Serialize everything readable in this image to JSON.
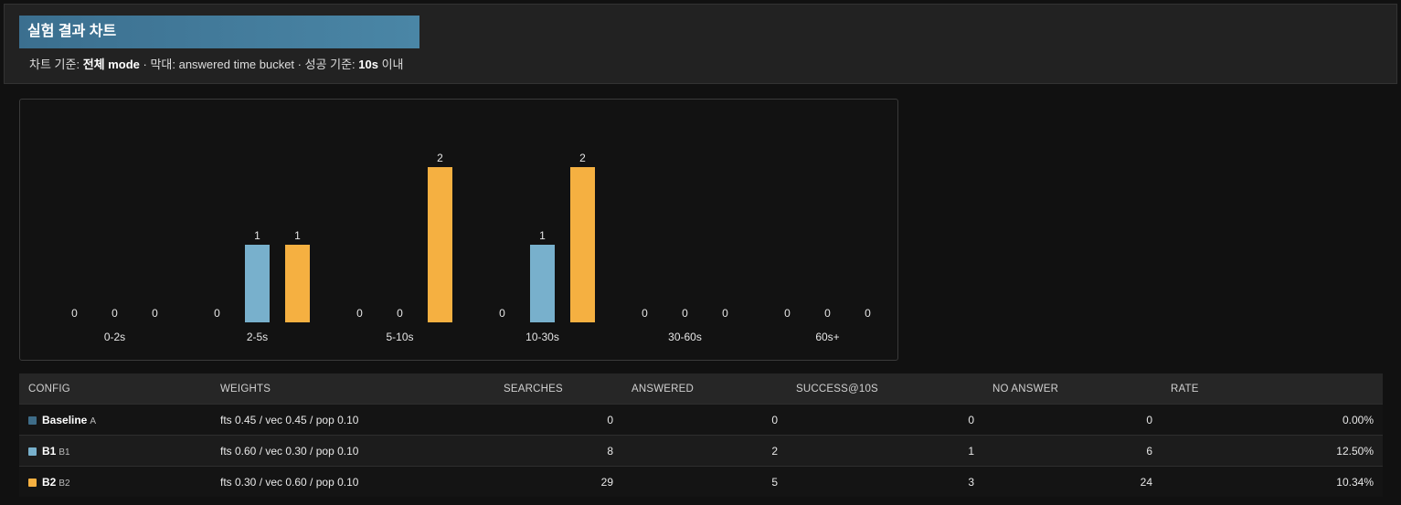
{
  "header": {
    "title": "실험 결과 차트",
    "subtitle_prefix": "차트 기준: ",
    "subtitle_mode": "전체 mode",
    "subtitle_mid": " · 막대: answered time bucket · 성공 기준: ",
    "subtitle_threshold": "10s",
    "subtitle_suffix": " 이내"
  },
  "colors": {
    "Baseline": "#3e6c88",
    "B1": "#78b0cc",
    "B2": "#f5b041"
  },
  "chart_data": {
    "type": "bar",
    "categories": [
      "0-2s",
      "2-5s",
      "5-10s",
      "10-30s",
      "30-60s",
      "60s+"
    ],
    "series": [
      {
        "name": "Baseline",
        "values": [
          0,
          0,
          0,
          0,
          0,
          0
        ]
      },
      {
        "name": "B1",
        "values": [
          0,
          1,
          0,
          1,
          0,
          0
        ]
      },
      {
        "name": "B2",
        "values": [
          0,
          1,
          2,
          2,
          0,
          0
        ]
      }
    ],
    "ylim": [
      0,
      2
    ],
    "grid": false,
    "data_labels": true
  },
  "table": {
    "headers": [
      "CONFIG",
      "WEIGHTS",
      "SEARCHES",
      "ANSWERED",
      "SUCCESS@10S",
      "NO ANSWER",
      "RATE"
    ],
    "rows": [
      {
        "name": "Baseline",
        "code": "A",
        "weights": "fts 0.45 / vec 0.45 / pop 0.10",
        "searches": "0",
        "answered": "0",
        "success": "0",
        "no_answer": "0",
        "rate": "0.00%"
      },
      {
        "name": "B1",
        "code": "B1",
        "weights": "fts 0.60 / vec 0.30 / pop 0.10",
        "searches": "8",
        "answered": "2",
        "success": "1",
        "no_answer": "6",
        "rate": "12.50%"
      },
      {
        "name": "B2",
        "code": "B2",
        "weights": "fts 0.30 / vec 0.60 / pop 0.10",
        "searches": "29",
        "answered": "5",
        "success": "3",
        "no_answer": "24",
        "rate": "10.34%"
      }
    ]
  }
}
